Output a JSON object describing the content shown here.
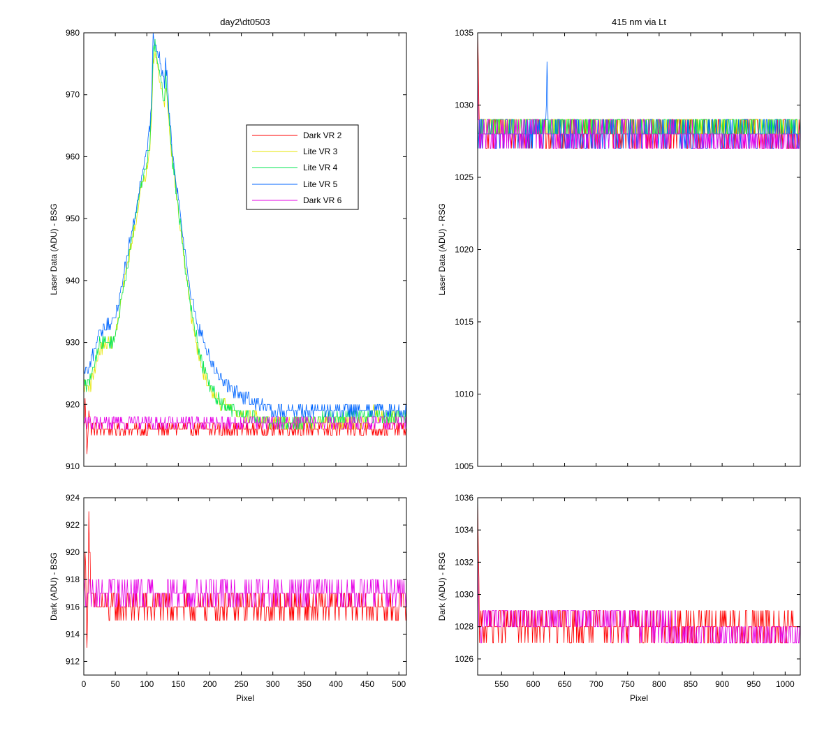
{
  "colors": {
    "dark_vr2": "#ff0000",
    "lite_vr3": "#e6e600",
    "lite_vr4": "#00e650",
    "lite_vr5": "#0066ff",
    "dark_vr6": "#e600e6"
  },
  "chart_data": [
    {
      "id": "top-left",
      "type": "line",
      "title": "day2\\dt0503",
      "xlabel": "",
      "ylabel": "Laser Data (ADU) - BSG",
      "xlim": [
        0,
        512
      ],
      "ylim": [
        910,
        980
      ],
      "xticks": [
        0,
        50,
        100,
        150,
        200,
        250,
        300,
        350,
        400,
        450,
        500
      ],
      "xtick_labels_visible": false,
      "yticks": [
        910,
        920,
        930,
        940,
        950,
        960,
        970,
        980
      ],
      "legend": {
        "position": "upper-center",
        "entries": [
          "Dark VR 2",
          "Lite VR 3",
          "Lite VR 4",
          "Lite VR 5",
          "Dark VR 6"
        ]
      },
      "series": [
        {
          "name": "Dark VR 2",
          "color": "#ff0000",
          "x": [
            0,
            2,
            5,
            8,
            12,
            20,
            50,
            100,
            150,
            200,
            250,
            300,
            350,
            400,
            450,
            512
          ],
          "y": [
            916,
            921,
            912,
            919,
            916,
            916,
            916,
            916,
            916,
            916,
            916,
            916,
            916,
            916,
            916,
            916
          ],
          "noise": 1
        },
        {
          "name": "Lite VR 3",
          "color": "#e6e600",
          "x": [
            0,
            5,
            10,
            15,
            20,
            25,
            45,
            50,
            60,
            70,
            80,
            90,
            100,
            105,
            108,
            110,
            113,
            128,
            130,
            135,
            140,
            150,
            160,
            170,
            180,
            190,
            200,
            210,
            220,
            240,
            260,
            280,
            300,
            320,
            340,
            350,
            360,
            380,
            400,
            420,
            440,
            450,
            460,
            470,
            480,
            490,
            500,
            512
          ],
          "y": [
            923,
            923,
            923,
            925,
            927,
            929,
            930,
            931,
            937,
            943,
            948,
            954,
            958,
            962,
            968,
            976,
            977,
            968,
            972,
            966,
            960,
            951,
            943,
            935,
            929,
            925,
            923,
            921,
            920,
            919,
            918,
            917.5,
            917,
            917,
            917,
            917,
            917,
            917,
            917,
            917,
            917,
            917,
            919,
            918,
            918,
            918,
            918,
            918
          ],
          "noise": 1
        },
        {
          "name": "Lite VR 4",
          "color": "#00e650",
          "x": [
            0,
            5,
            10,
            15,
            20,
            25,
            45,
            50,
            60,
            70,
            80,
            90,
            100,
            105,
            108,
            110,
            113,
            128,
            130,
            135,
            140,
            150,
            160,
            170,
            180,
            190,
            200,
            210,
            220,
            240,
            260,
            280,
            300,
            320,
            340,
            350,
            360,
            380,
            400,
            420,
            440,
            450,
            460,
            470,
            480,
            490,
            500,
            512
          ],
          "y": [
            924,
            923,
            924,
            926,
            928,
            930,
            930,
            931,
            937,
            943,
            949,
            955,
            959,
            963,
            969,
            977,
            978,
            969,
            973,
            967,
            960,
            952,
            943,
            936,
            930,
            926,
            923,
            921,
            920,
            919,
            918,
            917.5,
            917,
            917,
            917,
            917,
            917,
            918,
            918,
            918,
            918,
            918,
            918,
            918,
            918,
            918,
            918,
            918
          ],
          "noise": 1
        },
        {
          "name": "Lite VR 5",
          "color": "#0066ff",
          "x": [
            0,
            5,
            10,
            15,
            20,
            25,
            45,
            50,
            60,
            70,
            80,
            90,
            100,
            105,
            108,
            110,
            113,
            128,
            130,
            135,
            140,
            150,
            160,
            170,
            180,
            190,
            200,
            210,
            220,
            240,
            260,
            280,
            300,
            320,
            340,
            350,
            360,
            380,
            400,
            420,
            440,
            450,
            460,
            470,
            480,
            490,
            500,
            512
          ],
          "y": [
            925,
            925,
            926,
            928,
            930,
            932,
            933,
            934,
            939,
            945,
            950,
            956,
            961,
            965,
            971,
            979,
            979,
            972,
            976,
            968,
            961,
            953,
            945,
            938,
            933,
            930,
            927,
            925,
            924,
            922,
            921,
            920,
            919,
            919,
            919,
            919,
            919,
            919,
            919,
            919,
            919,
            919,
            919,
            919,
            919,
            919,
            919,
            919
          ],
          "noise": 1
        },
        {
          "name": "Dark VR 6",
          "color": "#e600e6",
          "x": [
            0,
            10,
            50,
            100,
            150,
            160,
            170,
            175,
            180,
            190,
            200,
            250,
            300,
            350,
            400,
            450,
            500,
            512
          ],
          "y": [
            917,
            917,
            917,
            917,
            917,
            917,
            917,
            917,
            917,
            917,
            917,
            917,
            917,
            917,
            917,
            917,
            917,
            917
          ],
          "noise": 1
        }
      ]
    },
    {
      "id": "bottom-left",
      "type": "line",
      "title": "",
      "xlabel": "Pixel",
      "ylabel": "Dark (ADU) - BSG",
      "xlim": [
        0,
        512
      ],
      "ylim": [
        911,
        924
      ],
      "xticks": [
        0,
        50,
        100,
        150,
        200,
        250,
        300,
        350,
        400,
        450,
        500
      ],
      "xtick_labels_visible": true,
      "yticks": [
        912,
        914,
        916,
        918,
        920,
        922,
        924
      ],
      "series": [
        {
          "name": "Dark VR 2",
          "color": "#ff0000",
          "x": [
            0,
            2,
            5,
            8,
            12,
            20,
            50,
            100,
            150,
            200,
            250,
            300,
            350,
            400,
            450,
            512
          ],
          "y": [
            916,
            921,
            912,
            923,
            916,
            916,
            916,
            916,
            916,
            916,
            916,
            916,
            916,
            916,
            916,
            916
          ],
          "noise": 1
        },
        {
          "name": "Dark VR 6",
          "color": "#e600e6",
          "x": [
            0,
            10,
            50,
            100,
            150,
            165,
            170,
            175,
            180,
            185,
            190,
            200,
            250,
            300,
            350,
            400,
            450,
            500,
            512
          ],
          "y": [
            917,
            917,
            917,
            917,
            917,
            917,
            917,
            917,
            917,
            917,
            917,
            917,
            917,
            917,
            917,
            917,
            917,
            917,
            917
          ],
          "noise": 1
        }
      ]
    },
    {
      "id": "top-right",
      "type": "line",
      "title": "415 nm via Lt",
      "xlabel": "",
      "ylabel": "Laser Data (ADU) - RSG",
      "xlim": [
        512,
        1024
      ],
      "ylim": [
        1005,
        1035
      ],
      "xticks": [
        550,
        600,
        650,
        700,
        750,
        800,
        850,
        900,
        950,
        1000
      ],
      "xtick_labels_visible": false,
      "yticks": [
        1005,
        1010,
        1015,
        1020,
        1025,
        1030,
        1035
      ],
      "series": [
        {
          "name": "Dark VR 2",
          "color": "#ff0000",
          "x": [
            512,
            513,
            515,
            520,
            600,
            700,
            800,
            900,
            1000,
            1024
          ],
          "y": [
            1034,
            1032,
            1028,
            1028,
            1028,
            1028,
            1028,
            1028,
            1028,
            1028
          ],
          "noise": 1
        },
        {
          "name": "Lite VR 3",
          "color": "#e6e600",
          "x": [
            512,
            520,
            600,
            700,
            800,
            900,
            1000,
            1024
          ],
          "y": [
            1028.5,
            1028.5,
            1028.5,
            1028.5,
            1028.5,
            1028.5,
            1028.5,
            1028.5
          ],
          "noise": 1
        },
        {
          "name": "Lite VR 4",
          "color": "#00e650",
          "x": [
            512,
            520,
            600,
            700,
            800,
            900,
            1000,
            1024
          ],
          "y": [
            1028.5,
            1028.5,
            1028.5,
            1028.5,
            1028.5,
            1028.5,
            1028.5,
            1028.5
          ],
          "noise": 1
        },
        {
          "name": "Lite VR 5",
          "color": "#0066ff",
          "x": [
            512,
            520,
            600,
            620,
            622,
            624,
            700,
            800,
            900,
            1000,
            1024
          ],
          "y": [
            1028,
            1028,
            1028,
            1028,
            1033,
            1028,
            1028,
            1028,
            1028,
            1028,
            1028
          ],
          "noise": 1
        },
        {
          "name": "Dark VR 6",
          "color": "#e600e6",
          "x": [
            512,
            513,
            515,
            520,
            600,
            700,
            800,
            900,
            1000,
            1024
          ],
          "y": [
            1032,
            1030,
            1028,
            1028,
            1028,
            1028,
            1028,
            1027.5,
            1027.5,
            1027.5
          ],
          "noise": 1
        }
      ]
    },
    {
      "id": "bottom-right",
      "type": "line",
      "title": "",
      "xlabel": "Pixel",
      "ylabel": "Dark (ADU) - RSG",
      "xlim": [
        512,
        1024
      ],
      "ylim": [
        1025,
        1036
      ],
      "xticks": [
        550,
        600,
        650,
        700,
        750,
        800,
        850,
        900,
        950,
        1000
      ],
      "xtick_labels_visible": true,
      "yticks": [
        1026,
        1028,
        1030,
        1032,
        1034,
        1036
      ],
      "series": [
        {
          "name": "Dark VR 2",
          "color": "#ff0000",
          "x": [
            512,
            513,
            515,
            520,
            600,
            700,
            800,
            900,
            1000,
            1024
          ],
          "y": [
            1035,
            1033,
            1028,
            1028,
            1028,
            1028,
            1028,
            1028,
            1028,
            1028
          ],
          "noise": 1
        },
        {
          "name": "Dark VR 6",
          "color": "#e600e6",
          "x": [
            512,
            513,
            515,
            520,
            600,
            700,
            800,
            850,
            900,
            1000,
            1024
          ],
          "y": [
            1032,
            1030,
            1028,
            1028.5,
            1028.5,
            1028.5,
            1028,
            1027.5,
            1027.5,
            1027.5,
            1027.5
          ],
          "noise": 1
        }
      ]
    }
  ]
}
